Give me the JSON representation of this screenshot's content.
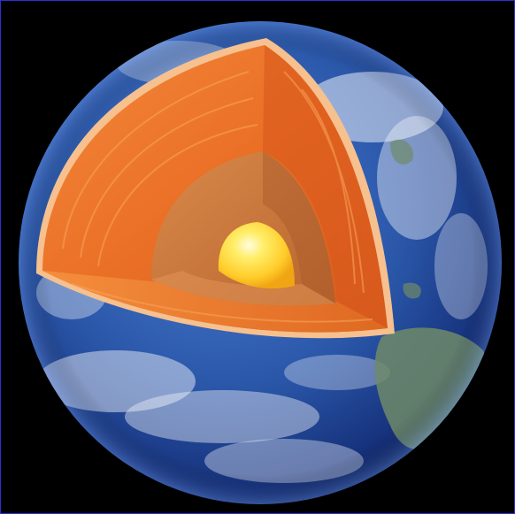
{
  "image": {
    "subject": "earth-interior-cutaway-icon",
    "colors": {
      "frame_border": "#2d2fd0",
      "background": "#000000",
      "ocean_light": "#3f6fc4",
      "ocean_dark": "#0c1f5c",
      "crust_edge": "#f6c08f",
      "mantle": "#ee7a2c",
      "mantle_dark": "#c9521a",
      "outer_core": "#c8773e",
      "inner_core": "#ffe04a",
      "inner_core_highlight": "#fffde0",
      "land": "#6f8a68",
      "clouds": "#e9eef7"
    }
  }
}
